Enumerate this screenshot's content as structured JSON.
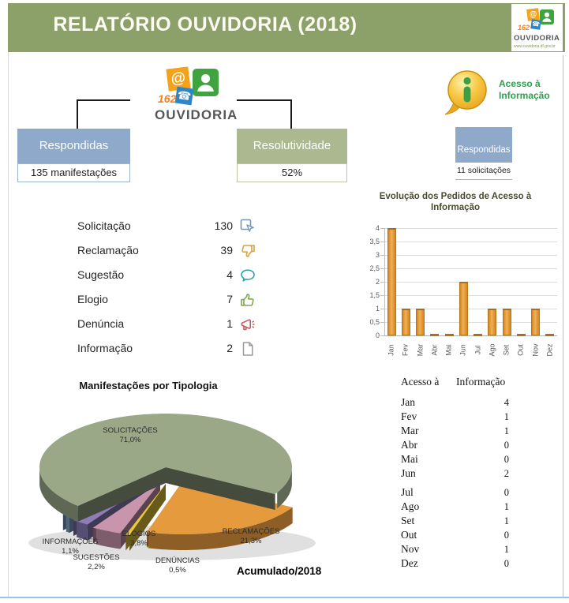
{
  "header": {
    "title": "RELATÓRIO OUVIDORIA (2018)"
  },
  "logo_small": {
    "number": "162",
    "at": "@",
    "phone": "☎",
    "brand": "OUVIDORIA",
    "url": "www.ouvidoria.df.gov.br"
  },
  "logo_center": {
    "number": "162",
    "at": "@",
    "phone": "☎",
    "brand": "OUVIDORIA"
  },
  "boxes": {
    "respondidas": {
      "label": "Respondidas",
      "value": "135 manifestações"
    },
    "resolutividade": {
      "label": "Resolutividade",
      "value": "52%"
    },
    "acesso_respondidas": {
      "label": "Respondidas",
      "value": "11 solicitações"
    }
  },
  "acesso_badge": {
    "letter": "i",
    "line1": "Acesso à",
    "line2": "Informação"
  },
  "tipos": {
    "rows": [
      {
        "label": "Solicitação",
        "value": "130",
        "icon": "cursor-box-icon",
        "color": "#7296BC"
      },
      {
        "label": "Reclamação",
        "value": "39",
        "icon": "thumbs-down-icon",
        "color": "#D9A23C"
      },
      {
        "label": "Sugestão",
        "value": "4",
        "icon": "speech-bubble-icon",
        "color": "#2FA3A8"
      },
      {
        "label": "Elogio",
        "value": "7",
        "icon": "thumbs-up-icon",
        "color": "#7FA65A"
      },
      {
        "label": "Denúncia",
        "value": "1",
        "icon": "megaphone-icon",
        "color": "#C85A5A"
      },
      {
        "label": "Informação",
        "value": "2",
        "icon": "document-icon",
        "color": "#9B9B9B"
      }
    ]
  },
  "chart_data": [
    {
      "type": "bar",
      "title": "Evolução dos Pedidos de Acesso à Informação",
      "categories": [
        "Jan",
        "Fev",
        "Mar",
        "Abr",
        "Mai",
        "Jun",
        "Jul",
        "Ago",
        "Set",
        "Out",
        "Nov",
        "Dez"
      ],
      "values": [
        4,
        1,
        1,
        0,
        0,
        2,
        0,
        1,
        1,
        0,
        1,
        0
      ],
      "xlabel": "",
      "ylabel": "",
      "ylim": [
        0,
        4
      ],
      "ytick_step": 0.5,
      "ytick_labels": [
        "0",
        "0,5",
        "1",
        "1,5",
        "2",
        "2,5",
        "3",
        "3,5",
        "4"
      ],
      "grid": true,
      "bar_color": "#E59A33"
    },
    {
      "type": "pie",
      "title": "Manifestações por Tipologia",
      "annotation": "Acumulado/2018",
      "slices": [
        {
          "label": "SOLICITAÇÕES",
          "pct_label": "71,0%",
          "value": 71.0,
          "color": "#9AA888"
        },
        {
          "label": "RECLAMAÇÕES",
          "pct_label": "21,3%",
          "value": 21.3,
          "color": "#E49A3D"
        },
        {
          "label": "DENÚNCIAS",
          "pct_label": "0,5%",
          "value": 0.5,
          "color": "#E8C93C"
        },
        {
          "label": "ELOGIOS",
          "pct_label": "3,8%",
          "value": 3.8,
          "color": "#C995AD"
        },
        {
          "label": "SUGESTÕES",
          "pct_label": "2,2%",
          "value": 2.2,
          "color": "#8D7EBB"
        },
        {
          "label": "INFORMAÇÕES",
          "pct_label": "1,1%",
          "value": 1.1,
          "color": "#7FA3CB"
        }
      ]
    }
  ],
  "acesso_table": {
    "header": [
      "Acesso à",
      "Informação"
    ],
    "months": [
      "Jan",
      "Fev",
      "Mar",
      "Abr",
      "Mai",
      "Jun",
      "Jul",
      "Ago",
      "Set",
      "Out",
      "Nov",
      "Dez"
    ],
    "values": [
      4,
      1,
      1,
      0,
      0,
      2,
      0,
      1,
      1,
      0,
      1,
      0
    ]
  }
}
